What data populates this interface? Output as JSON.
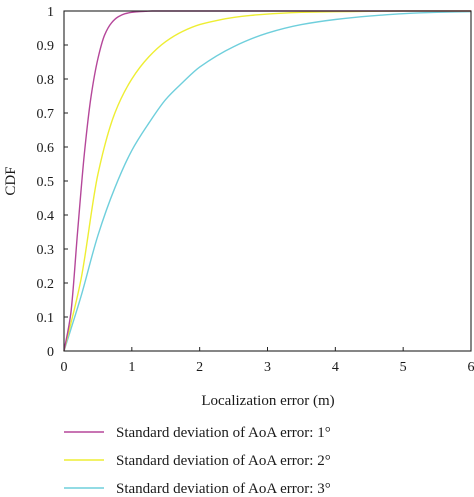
{
  "chart_data": {
    "type": "line",
    "title": "",
    "xlabel": "Localization error (m)",
    "ylabel": "CDF",
    "xlim": [
      0,
      6
    ],
    "ylim": [
      0,
      1
    ],
    "xticks": [
      0,
      1,
      2,
      3,
      4,
      5,
      6
    ],
    "xtick_labels": [
      "0",
      "1",
      "2",
      "3",
      "4",
      "5",
      "6"
    ],
    "yticks": [
      0,
      0.1,
      0.2,
      0.3,
      0.4,
      0.5,
      0.6,
      0.7,
      0.8,
      0.9,
      1
    ],
    "ytick_labels": [
      "0",
      "0.1",
      "0.2",
      "0.3",
      "0.4",
      "0.5",
      "0.6",
      "0.7",
      "0.8",
      "0.9",
      "1"
    ],
    "grid": false,
    "legend_position": "bottom",
    "series": [
      {
        "name": "Standard deviation of AoA error: 1°",
        "color": "#b5479a",
        "x": [
          0,
          0.1,
          0.2,
          0.3,
          0.4,
          0.5,
          0.6,
          0.7,
          0.8,
          0.9,
          1.0,
          1.1,
          1.2,
          1.3,
          1.4,
          1.5,
          1.6,
          2.0,
          6.0
        ],
        "y": [
          0,
          0.11,
          0.35,
          0.58,
          0.75,
          0.86,
          0.93,
          0.965,
          0.983,
          0.992,
          0.996,
          0.998,
          0.999,
          1.0,
          1.0,
          1.0,
          1.0,
          1.0,
          1.0
        ]
      },
      {
        "name": "Standard deviation of AoA error: 2°",
        "color": "#eeee33",
        "x": [
          0,
          0.25,
          0.5,
          0.75,
          1.0,
          1.25,
          1.5,
          1.75,
          2.0,
          2.25,
          2.5,
          2.75,
          3.0,
          3.5,
          4.0,
          4.5,
          5.0,
          6.0
        ],
        "y": [
          0,
          0.21,
          0.52,
          0.7,
          0.8,
          0.865,
          0.91,
          0.94,
          0.96,
          0.972,
          0.981,
          0.987,
          0.991,
          0.996,
          0.998,
          0.999,
          1.0,
          1.0
        ]
      },
      {
        "name": "Standard deviation of AoA error: 3°",
        "color": "#6fcfdc",
        "x": [
          0,
          0.25,
          0.5,
          0.75,
          1.0,
          1.25,
          1.5,
          1.75,
          2.0,
          2.5,
          3.0,
          3.5,
          4.0,
          4.5,
          5.0,
          5.5,
          6.0
        ],
        "y": [
          0,
          0.16,
          0.34,
          0.48,
          0.59,
          0.67,
          0.74,
          0.79,
          0.835,
          0.895,
          0.935,
          0.96,
          0.975,
          0.985,
          0.992,
          0.996,
          0.998
        ]
      }
    ]
  }
}
